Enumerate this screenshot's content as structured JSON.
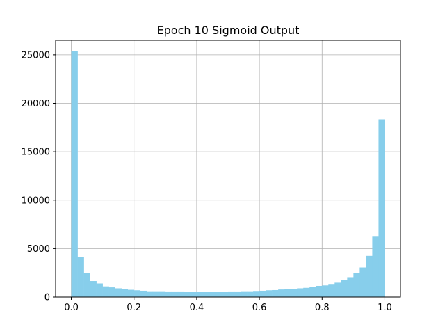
{
  "chart_data": {
    "type": "bar",
    "title": "Epoch 10 Sigmoid Output",
    "xlabel": "",
    "ylabel": "",
    "xlim": [
      -0.05,
      1.05
    ],
    "ylim": [
      0,
      26500
    ],
    "x_ticks": [
      0.0,
      0.2,
      0.4,
      0.6,
      0.8,
      1.0
    ],
    "x_tick_labels": [
      "0.0",
      "0.2",
      "0.4",
      "0.6",
      "0.8",
      "1.0"
    ],
    "y_ticks": [
      0,
      5000,
      10000,
      15000,
      20000,
      25000
    ],
    "y_tick_labels": [
      "0",
      "5000",
      "10000",
      "15000",
      "20000",
      "25000"
    ],
    "grid": true,
    "bins": 50,
    "bin_range": [
      0.0,
      1.0
    ],
    "bar_color": "#87ceeb",
    "values": [
      25350,
      4150,
      2450,
      1650,
      1400,
      1100,
      1000,
      900,
      800,
      750,
      700,
      650,
      600,
      600,
      600,
      580,
      580,
      580,
      570,
      570,
      570,
      570,
      570,
      570,
      570,
      580,
      580,
      600,
      600,
      630,
      650,
      700,
      720,
      780,
      800,
      850,
      900,
      950,
      1050,
      1150,
      1200,
      1350,
      1550,
      1750,
      2050,
      2500,
      3050,
      4250,
      6300,
      18350
    ]
  }
}
